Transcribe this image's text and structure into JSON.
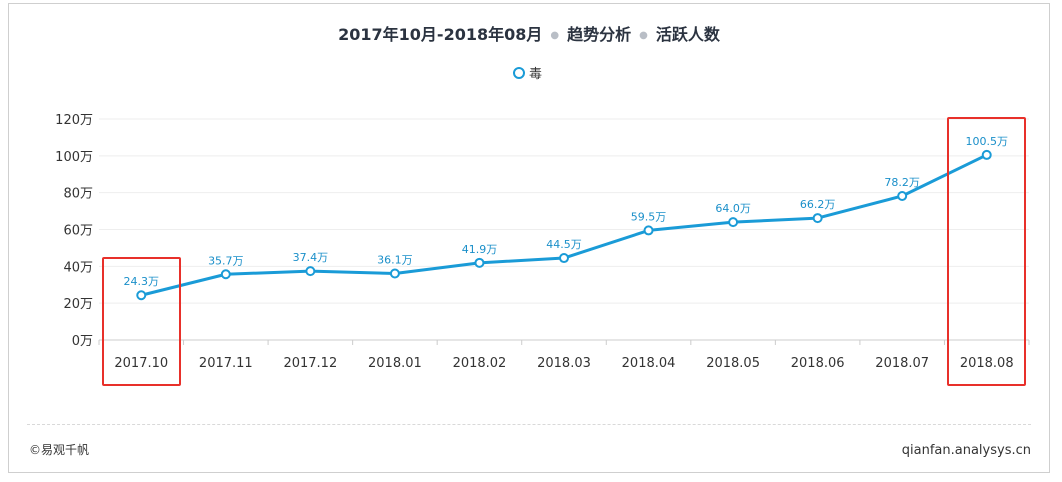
{
  "header": {
    "period": "2017年10月-2018年08月",
    "section": "趋势分析",
    "metric": "活跃人数"
  },
  "legend": {
    "label": "毒"
  },
  "chart_data": {
    "type": "line",
    "categories": [
      "2017.10",
      "2017.11",
      "2017.12",
      "2018.01",
      "2018.02",
      "2018.03",
      "2018.04",
      "2018.05",
      "2018.06",
      "2018.07",
      "2018.08"
    ],
    "series": [
      {
        "name": "毒",
        "values": [
          24.3,
          35.7,
          37.4,
          36.1,
          41.9,
          44.5,
          59.5,
          64.0,
          66.2,
          78.2,
          100.5
        ]
      }
    ],
    "data_labels": [
      "24.3万",
      "35.7万",
      "37.4万",
      "36.1万",
      "41.9万",
      "44.5万",
      "59.5万",
      "64.0万",
      "66.2万",
      "78.2万",
      "100.5万"
    ],
    "y_ticks": [
      0,
      20,
      40,
      60,
      80,
      100,
      120
    ],
    "y_tick_labels": [
      "0万",
      "20万",
      "40万",
      "60万",
      "80万",
      "100万",
      "120万"
    ],
    "ylim": [
      0,
      120
    ],
    "grid": true,
    "highlighted_categories": [
      "2017.10",
      "2018.08"
    ],
    "colors": {
      "line": "#1a9bd7",
      "label": "#1a8fc9",
      "highlight": "#e8302a"
    }
  },
  "footer": {
    "copyright": "©易观千帆",
    "site": "qianfan.analysys.cn"
  }
}
